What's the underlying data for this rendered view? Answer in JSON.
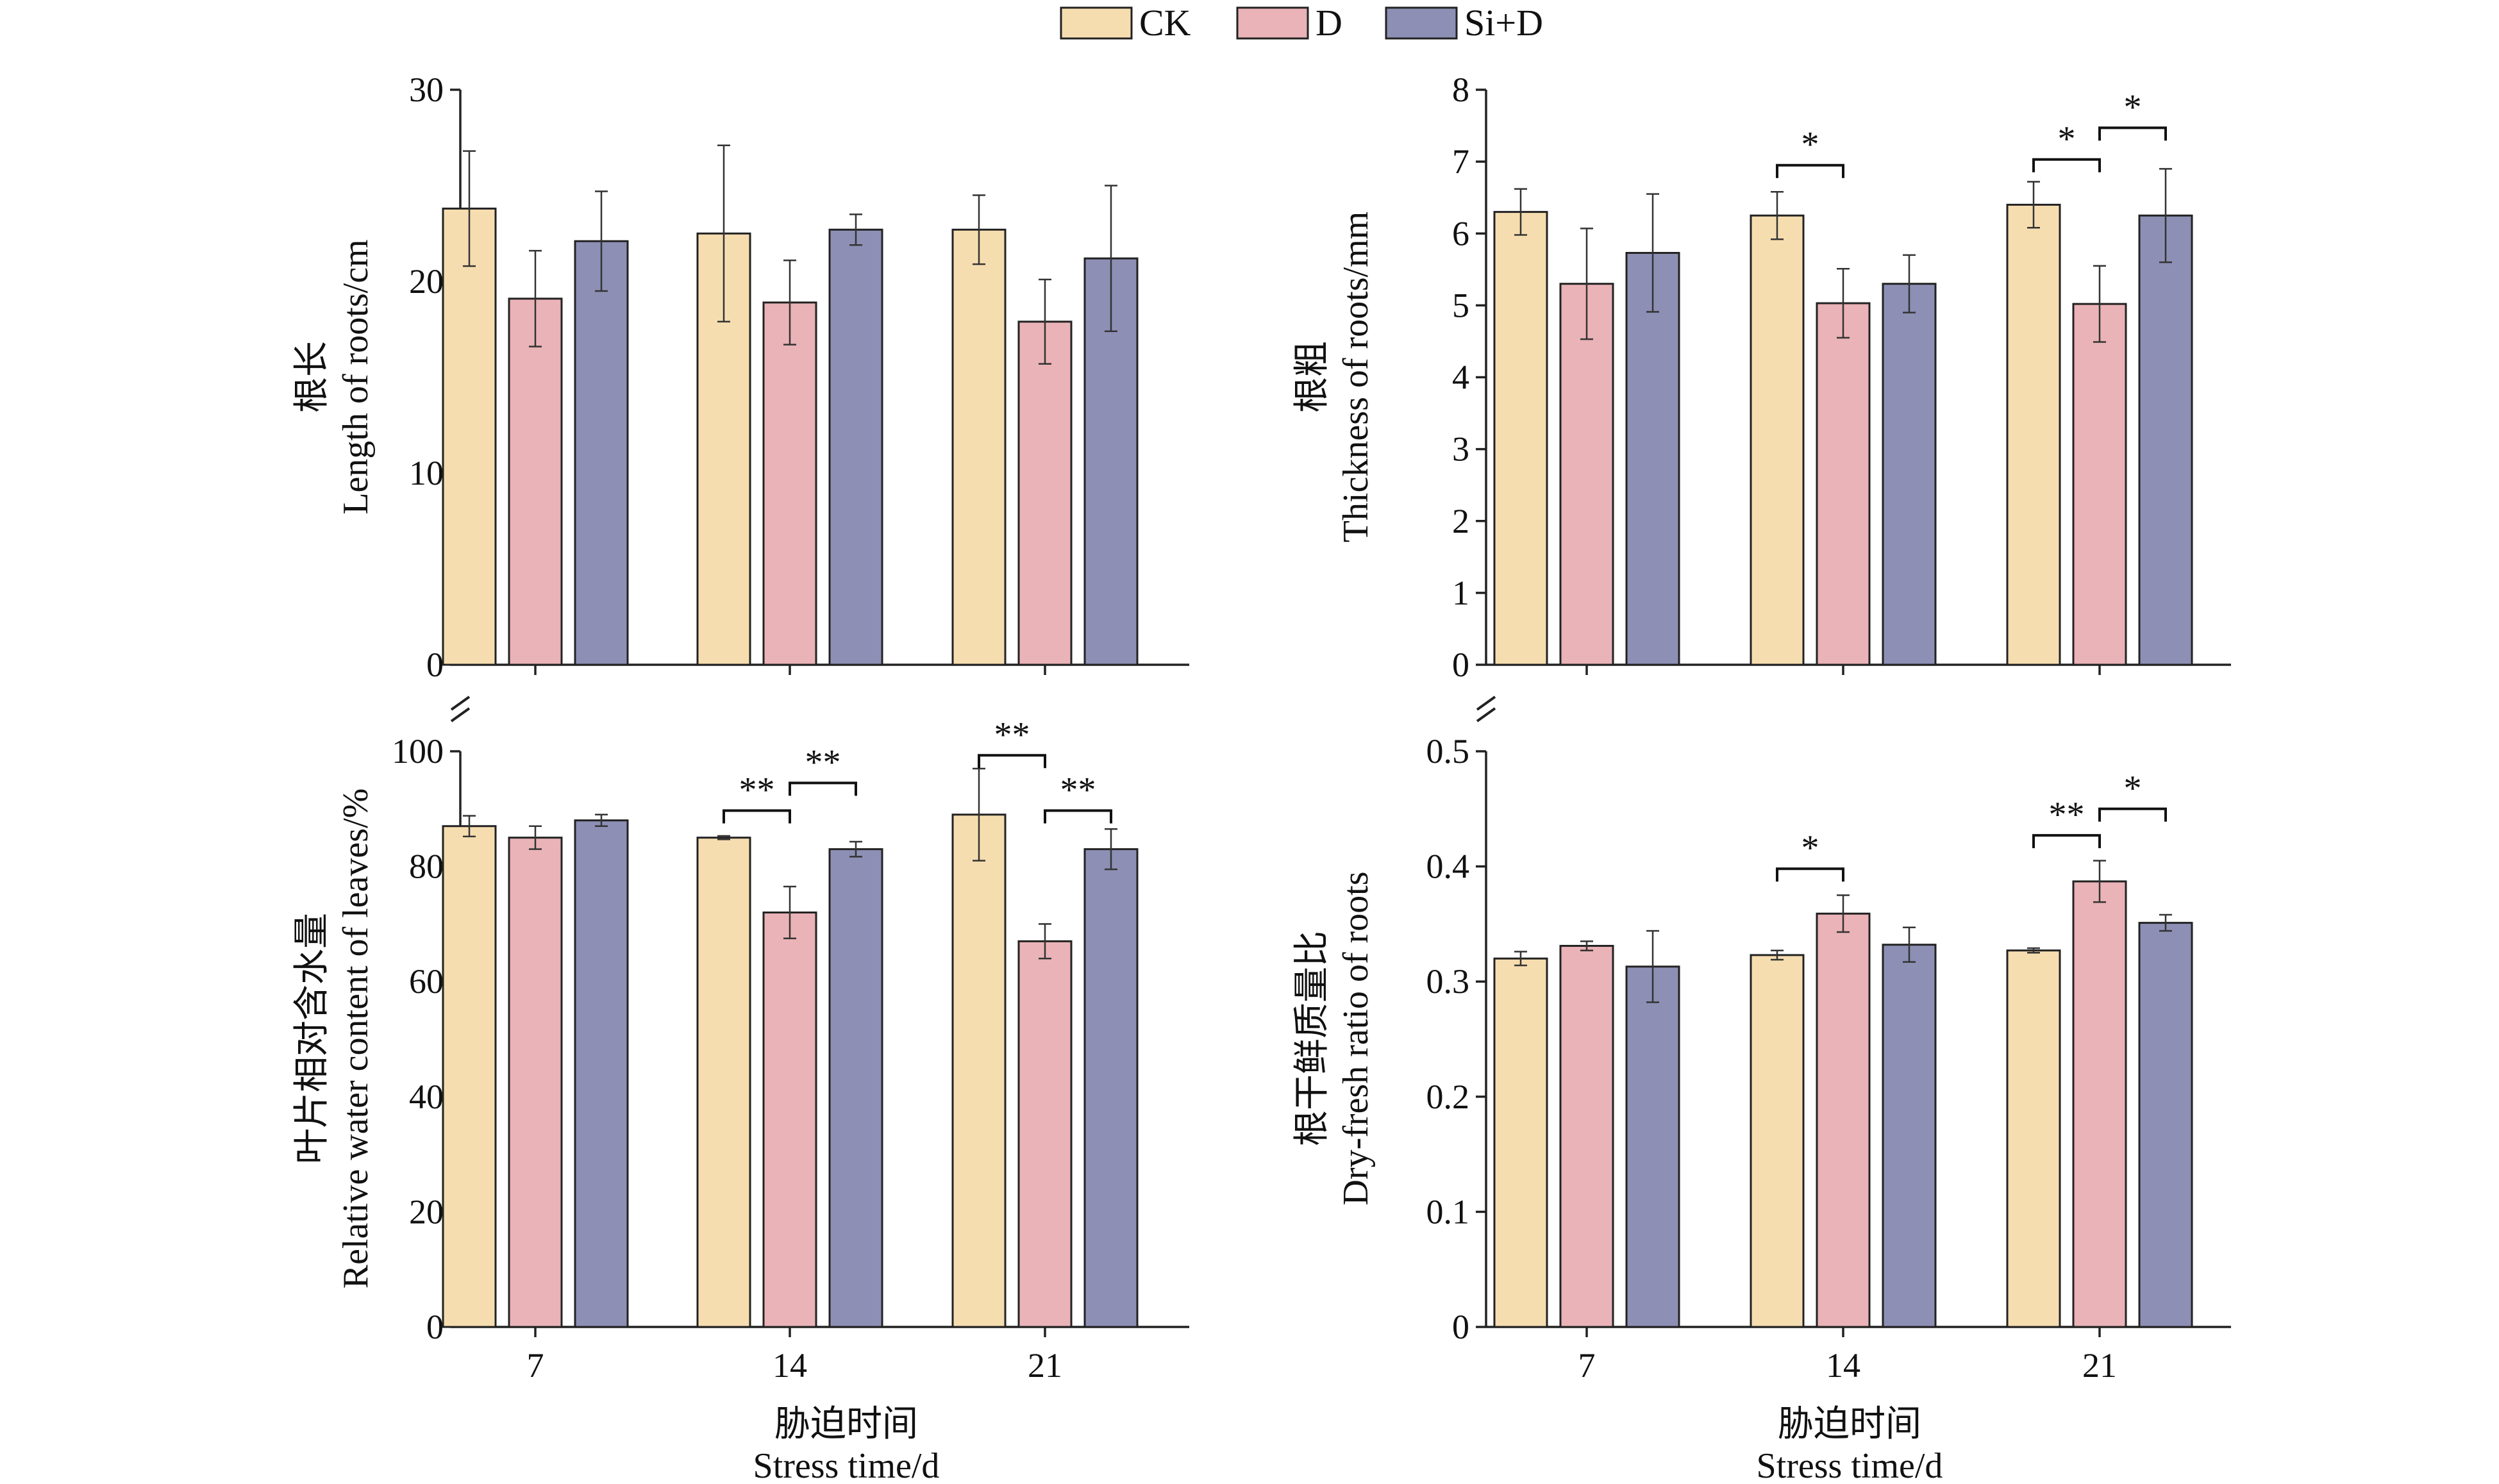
{
  "legend": {
    "items": [
      {
        "label": "CK",
        "color": "#f6ddb0"
      },
      {
        "label": "D",
        "color": "#eab3b7"
      },
      {
        "label": "Si+D",
        "color": "#8d8fb5"
      }
    ]
  },
  "x_axis": {
    "zh": "胁迫时间",
    "en": "Stress time/d"
  },
  "chart_data": [
    {
      "type": "bar",
      "ylabel_zh": "根长",
      "ylabel_en": "Length of roots/cm",
      "categories": [
        "7",
        "14",
        "21"
      ],
      "ylim": [
        0,
        30
      ],
      "yticks": [
        0,
        10,
        20,
        30
      ],
      "series": [
        {
          "name": "CK",
          "values": [
            23.8,
            22.5,
            22.7
          ],
          "errors": [
            3.0,
            4.6,
            1.8
          ]
        },
        {
          "name": "D",
          "values": [
            19.1,
            18.9,
            17.9
          ],
          "errors": [
            2.5,
            2.2,
            2.2
          ]
        },
        {
          "name": "Si+D",
          "values": [
            22.1,
            22.7,
            21.2
          ],
          "errors": [
            2.6,
            0.8,
            3.8
          ]
        }
      ],
      "significance": []
    },
    {
      "type": "bar",
      "ylabel_zh": "根粗",
      "ylabel_en": "Thickness of roots/mm",
      "categories": [
        "7",
        "14",
        "21"
      ],
      "ylim": [
        0,
        8
      ],
      "yticks": [
        0,
        1,
        2,
        3,
        4,
        5,
        6,
        7,
        8
      ],
      "series": [
        {
          "name": "CK",
          "values": [
            6.3,
            6.25,
            6.4
          ],
          "errors": [
            0.32,
            0.33,
            0.32
          ]
        },
        {
          "name": "D",
          "values": [
            5.3,
            5.03,
            5.02
          ],
          "errors": [
            0.77,
            0.48,
            0.53
          ]
        },
        {
          "name": "Si+D",
          "values": [
            5.73,
            5.3,
            6.25
          ],
          "errors": [
            0.82,
            0.4,
            0.65
          ]
        }
      ],
      "significance": [
        {
          "category": 1,
          "from": 0,
          "to": 1,
          "label": "*",
          "level": 6.95
        },
        {
          "category": 2,
          "from": 0,
          "to": 1,
          "label": "*",
          "level": 7.03
        },
        {
          "category": 2,
          "from": 1,
          "to": 2,
          "label": "*",
          "level": 7.47
        }
      ]
    },
    {
      "type": "bar",
      "ylabel_zh": "叶片相对含水量",
      "ylabel_en": "Relative water content of leaves/%",
      "categories": [
        "7",
        "14",
        "21"
      ],
      "ylim": [
        0,
        100
      ],
      "yticks": [
        0,
        20,
        40,
        60,
        80,
        100
      ],
      "series": [
        {
          "name": "CK",
          "values": [
            87,
            85,
            89
          ],
          "errors": [
            1.8,
            0.3,
            8
          ]
        },
        {
          "name": "D",
          "values": [
            85,
            72,
            67
          ],
          "errors": [
            2,
            4.5,
            3
          ]
        },
        {
          "name": "Si+D",
          "values": [
            88,
            83,
            83
          ],
          "errors": [
            1,
            1.3,
            3.5
          ]
        }
      ],
      "significance": [
        {
          "category": 1,
          "from": 0,
          "to": 1,
          "label": "**",
          "level": 89.7
        },
        {
          "category": 1,
          "from": 1,
          "to": 2,
          "label": "**",
          "level": 94.5
        },
        {
          "category": 2,
          "from": 0,
          "to": 1,
          "label": "**",
          "level": 99.3
        },
        {
          "category": 2,
          "from": 1,
          "to": 2,
          "label": "**",
          "level": 89.7
        }
      ]
    },
    {
      "type": "bar",
      "ylabel_zh": "根干鲜质量比",
      "ylabel_en": "Dry-fresh ratio of roots",
      "categories": [
        "7",
        "14",
        "21"
      ],
      "ylim": [
        0,
        0.5
      ],
      "yticks": [
        "0",
        "0.1",
        "0.2",
        "0.3",
        "0.4",
        "0.5"
      ],
      "series": [
        {
          "name": "CK",
          "values": [
            0.32,
            0.323,
            0.327
          ],
          "errors": [
            0.006,
            0.004,
            0.002
          ]
        },
        {
          "name": "D",
          "values": [
            0.331,
            0.359,
            0.387
          ],
          "errors": [
            0.004,
            0.016,
            0.018
          ]
        },
        {
          "name": "Si+D",
          "values": [
            0.313,
            0.332,
            0.351
          ],
          "errors": [
            0.031,
            0.015,
            0.007
          ]
        }
      ],
      "significance": [
        {
          "category": 1,
          "from": 0,
          "to": 1,
          "label": "*",
          "level": 0.398
        },
        {
          "category": 2,
          "from": 0,
          "to": 1,
          "label": "**",
          "level": 0.427
        },
        {
          "category": 2,
          "from": 1,
          "to": 2,
          "label": "*",
          "level": 0.45
        }
      ]
    }
  ]
}
